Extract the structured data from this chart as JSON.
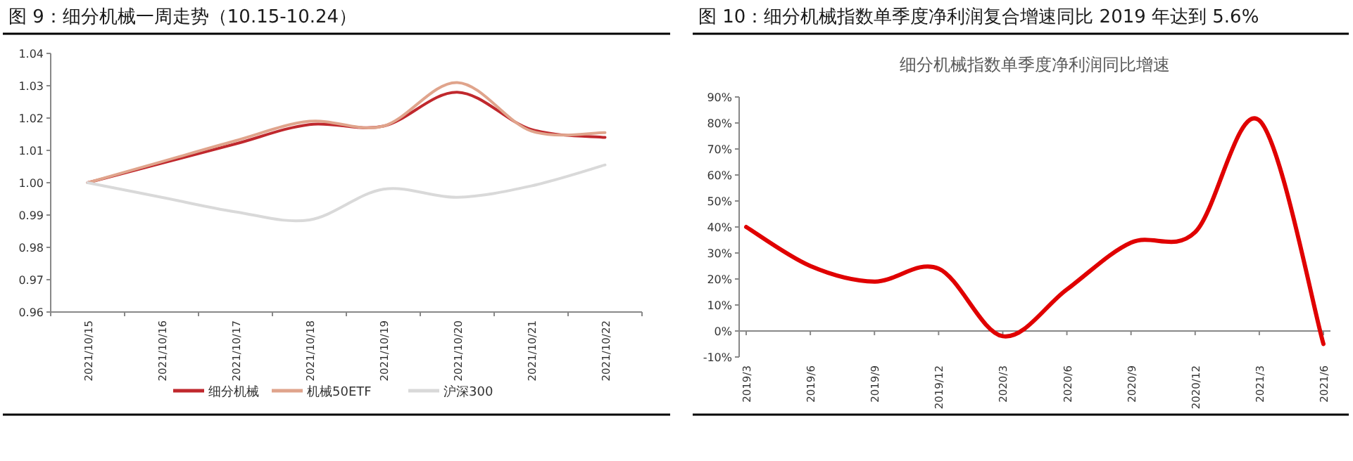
{
  "chart_data": [
    {
      "type": "line",
      "title": "图 9：细分机械一周走势（10.15-10.24）",
      "categories": [
        "2021/10/15",
        "2021/10/16",
        "2021/10/17",
        "2021/10/18",
        "2021/10/19",
        "2021/10/20",
        "2021/10/21",
        "2021/10/22"
      ],
      "series": [
        {
          "name": "细分机械",
          "color": "#c0282d",
          "values": [
            1.0,
            1.006,
            1.012,
            1.018,
            1.0175,
            1.028,
            1.0165,
            1.014
          ]
        },
        {
          "name": "机械50ETF",
          "color": "#e0a48c",
          "values": [
            1.0,
            1.0065,
            1.013,
            1.019,
            1.0175,
            1.031,
            1.016,
            1.0155
          ]
        },
        {
          "name": "沪深300",
          "color": "#d9d9d9",
          "values": [
            1.0,
            0.9955,
            0.991,
            0.9885,
            0.998,
            0.9955,
            0.999,
            1.0055
          ]
        }
      ],
      "ylim": [
        0.96,
        1.04
      ],
      "yticks": [
        {
          "value": 0.96,
          "label": "0.96"
        },
        {
          "value": 0.97,
          "label": "0.97"
        },
        {
          "value": 0.98,
          "label": "0.98"
        },
        {
          "value": 0.99,
          "label": "0.99"
        },
        {
          "value": 1.0,
          "label": "1.00"
        },
        {
          "value": 1.01,
          "label": "1.01"
        },
        {
          "value": 1.02,
          "label": "1.02"
        },
        {
          "value": 1.03,
          "label": "1.03"
        },
        {
          "value": 1.04,
          "label": "1.04"
        }
      ],
      "legend": "bottom"
    },
    {
      "type": "line",
      "title": "图 10：细分机械指数单季度净利润复合增速同比 2019 年达到 5.6%",
      "subtitle": "细分机械指数单季度净利润同比增速",
      "categories": [
        "2019/3",
        "2019/6",
        "2019/9",
        "2019/12",
        "2020/3",
        "2020/6",
        "2020/9",
        "2020/12",
        "2021/3",
        "2021/6"
      ],
      "series": [
        {
          "color": "#e00000",
          "values": [
            40,
            25,
            19,
            24,
            -2,
            16,
            34,
            38,
            81,
            -5
          ]
        }
      ],
      "ylim": [
        -10,
        90
      ],
      "yticks": [
        {
          "value": -10,
          "label": "-10%"
        },
        {
          "value": 0,
          "label": "0%"
        },
        {
          "value": 10,
          "label": "10%"
        },
        {
          "value": 20,
          "label": "20%"
        },
        {
          "value": 30,
          "label": "30%"
        },
        {
          "value": 40,
          "label": "40%"
        },
        {
          "value": 50,
          "label": "50%"
        },
        {
          "value": 60,
          "label": "60%"
        },
        {
          "value": 70,
          "label": "70%"
        },
        {
          "value": 80,
          "label": "80%"
        },
        {
          "value": 90,
          "label": "90%"
        }
      ]
    }
  ]
}
